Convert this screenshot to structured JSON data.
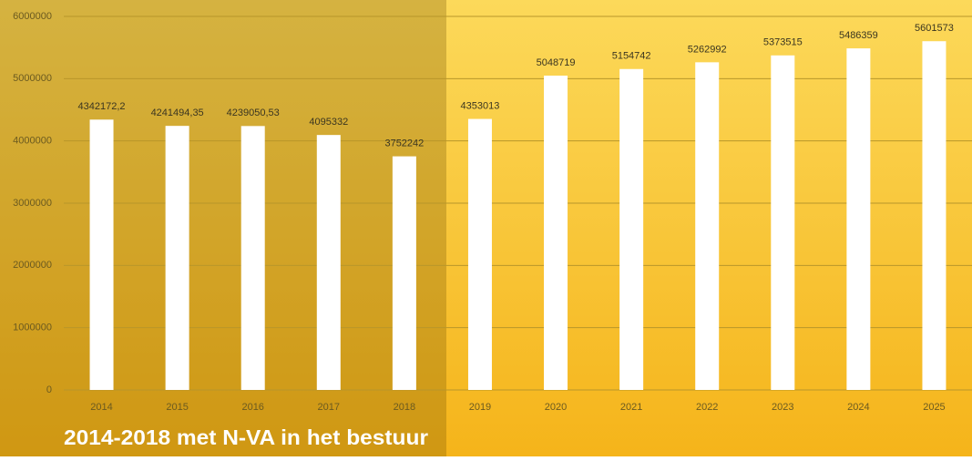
{
  "chart_data": {
    "type": "bar",
    "categories": [
      "2014",
      "2015",
      "2016",
      "2017",
      "2018",
      "2019",
      "2020",
      "2021",
      "2022",
      "2023",
      "2024",
      "2025"
    ],
    "values": [
      4342172.2,
      4241494.35,
      4239050.53,
      4095332,
      3752242,
      4353013,
      5048719,
      5154742,
      5262992,
      5373515,
      5486359,
      5601573
    ],
    "value_labels": [
      "4342172,2",
      "4241494,35",
      "4239050,53",
      "4095332",
      "3752242",
      "4353013",
      "5048719",
      "5154742",
      "5262992",
      "5373515",
      "5486359",
      "5601573"
    ],
    "color": "#ffffff",
    "ylim": [
      0,
      6000000
    ],
    "yticks": [
      0,
      1000000,
      2000000,
      3000000,
      4000000,
      5000000,
      6000000
    ],
    "grid": true,
    "annotation": "2014-2018 met N-VA in het bestuur"
  }
}
